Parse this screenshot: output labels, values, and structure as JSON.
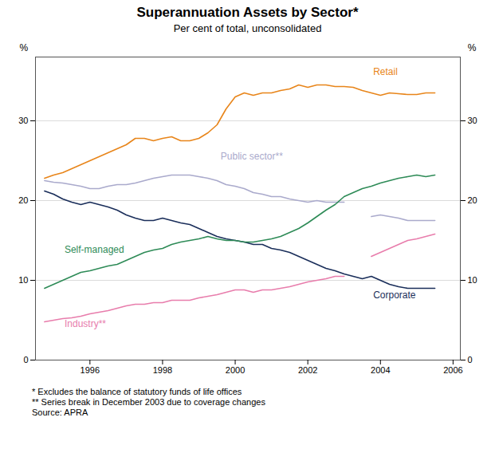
{
  "chart_data": {
    "type": "line",
    "title": "Superannuation Assets by Sector*",
    "subtitle": "Per cent of total, unconsolidated",
    "ylabel": "%",
    "y2label": "%",
    "footnotes": [
      "*   Excludes the balance of statutory funds of life offices",
      "** Series break in December 2003 due to coverage changes",
      "Source: APRA"
    ],
    "xlim": [
      1994.5,
      2006.2
    ],
    "xticks": [
      1996,
      1998,
      2000,
      2002,
      2004,
      2006
    ],
    "ylim": [
      0,
      38
    ],
    "yticks": [
      0,
      10,
      20,
      30
    ],
    "y2lim": [
      0,
      38
    ],
    "y2ticks": [
      0,
      10,
      20,
      30
    ],
    "grid": true,
    "x": [
      1994.75,
      1995.0,
      1995.25,
      1995.5,
      1995.75,
      1996.0,
      1996.25,
      1996.5,
      1996.75,
      1997.0,
      1997.25,
      1997.5,
      1997.75,
      1998.0,
      1998.25,
      1998.5,
      1998.75,
      1999.0,
      1999.25,
      1999.5,
      1999.75,
      2000.0,
      2000.25,
      2000.5,
      2000.75,
      2001.0,
      2001.25,
      2001.5,
      2001.75,
      2002.0,
      2002.25,
      2002.5,
      2002.75,
      2003.0,
      2003.25,
      2003.5,
      2003.75,
      2004.0,
      2004.25,
      2004.5,
      2004.75,
      2005.0,
      2005.25,
      2005.5
    ],
    "series": [
      {
        "name": "Retail",
        "color": "#E8851A",
        "values": [
          22.8,
          23.2,
          23.5,
          24.0,
          24.5,
          25.0,
          25.5,
          26.0,
          26.5,
          27.0,
          27.8,
          27.8,
          27.5,
          27.8,
          28.0,
          27.5,
          27.5,
          27.8,
          28.5,
          29.5,
          31.5,
          33.0,
          33.5,
          33.2,
          33.5,
          33.5,
          33.8,
          34.0,
          34.5,
          34.2,
          34.5,
          34.5,
          34.3,
          34.3,
          34.2,
          33.8,
          33.5,
          33.2,
          33.5,
          33.4,
          33.3,
          33.3,
          33.5,
          33.5
        ]
      },
      {
        "name": "Public sector**",
        "color": "#aaaacc",
        "values": [
          22.5,
          22.3,
          22.2,
          22.0,
          21.8,
          21.5,
          21.5,
          21.8,
          22.0,
          22.0,
          22.2,
          22.5,
          22.8,
          23.0,
          23.2,
          23.2,
          23.2,
          23.0,
          22.8,
          22.5,
          22.0,
          21.8,
          21.5,
          21.0,
          20.8,
          20.5,
          20.5,
          20.2,
          20.0,
          19.8,
          20.0,
          19.8,
          19.8,
          19.8,
          null,
          null,
          18.0,
          18.2,
          18.0,
          17.8,
          17.5,
          17.5,
          17.5,
          17.5
        ]
      },
      {
        "name": "Corporate",
        "color": "#1a2e5a",
        "values": [
          21.2,
          20.8,
          20.2,
          19.8,
          19.5,
          19.8,
          19.5,
          19.2,
          18.8,
          18.2,
          17.8,
          17.5,
          17.5,
          17.8,
          17.5,
          17.2,
          17.0,
          16.5,
          16.0,
          15.5,
          15.2,
          15.0,
          14.8,
          14.5,
          14.5,
          14.0,
          13.8,
          13.5,
          13.0,
          12.5,
          12.0,
          11.5,
          11.2,
          10.8,
          10.5,
          10.2,
          10.5,
          10.0,
          9.5,
          9.2,
          9.0,
          9.0,
          9.0,
          9.0
        ]
      },
      {
        "name": "Self-managed",
        "color": "#2e8b57",
        "values": [
          9.0,
          9.5,
          10.0,
          10.5,
          11.0,
          11.2,
          11.5,
          11.8,
          12.0,
          12.5,
          13.0,
          13.5,
          13.8,
          14.0,
          14.5,
          14.8,
          15.0,
          15.2,
          15.5,
          15.2,
          15.0,
          15.0,
          14.8,
          14.8,
          15.0,
          15.2,
          15.5,
          16.0,
          16.5,
          17.2,
          18.0,
          18.8,
          19.5,
          20.5,
          21.0,
          21.5,
          21.8,
          22.2,
          22.5,
          22.8,
          23.0,
          23.2,
          23.0,
          23.2
        ]
      },
      {
        "name": "Industry**",
        "color": "#e87dac",
        "values": [
          4.8,
          5.0,
          5.2,
          5.3,
          5.5,
          5.8,
          6.0,
          6.2,
          6.5,
          6.8,
          7.0,
          7.0,
          7.2,
          7.2,
          7.5,
          7.5,
          7.5,
          7.8,
          8.0,
          8.2,
          8.5,
          8.8,
          8.8,
          8.5,
          8.8,
          8.8,
          9.0,
          9.2,
          9.5,
          9.8,
          10.0,
          10.2,
          10.5,
          10.5,
          null,
          null,
          13.0,
          13.5,
          14.0,
          14.5,
          15.0,
          15.2,
          15.5,
          15.8
        ]
      }
    ],
    "annotations": [
      {
        "text": "Retail",
        "x": 2003.8,
        "y": 35.8,
        "color": "#E8851A"
      },
      {
        "text": "Public sector**",
        "x": 1999.6,
        "y": 25.2,
        "color": "#aaaacc"
      },
      {
        "text": "Corporate",
        "x": 2003.8,
        "y": 7.8,
        "color": "#1a2e5a"
      },
      {
        "text": "Self-managed",
        "x": 1995.3,
        "y": 13.5,
        "color": "#2e8b57"
      },
      {
        "text": "Industry**",
        "x": 1995.3,
        "y": 4.2,
        "color": "#e87dac"
      }
    ]
  }
}
